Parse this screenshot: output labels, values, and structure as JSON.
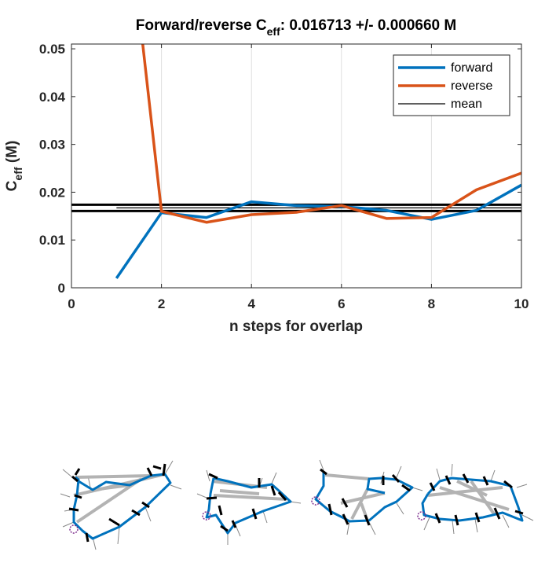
{
  "chart_data": {
    "type": "line",
    "title": {
      "pre": "Forward/reverse C",
      "sub": "eff",
      "post": ": 0.016713 +/- 0.000660 M"
    },
    "xlabel": "n steps for overlap",
    "ylabel": {
      "main": "C",
      "sub": "eff",
      "post": " (M)"
    },
    "xlim": [
      0,
      10
    ],
    "ylim": [
      0,
      0.051
    ],
    "xticks": [
      0,
      2,
      4,
      6,
      8,
      10
    ],
    "xtick_labels": [
      "0",
      "2",
      "4",
      "6",
      "8",
      "10"
    ],
    "yticks": [
      0,
      0.01,
      0.02,
      0.03,
      0.04,
      0.05
    ],
    "ytick_labels": [
      "0",
      "0.01",
      "0.02",
      "0.03",
      "0.04",
      "0.05"
    ],
    "grid": "x",
    "legend_position": "top-right",
    "series": [
      {
        "name": "forward",
        "color": "#0072BD",
        "x": [
          1,
          2,
          3,
          4,
          5,
          6,
          7,
          8,
          9,
          10
        ],
        "y": [
          0.002,
          0.0157,
          0.0147,
          0.018,
          0.0172,
          0.017,
          0.0162,
          0.0143,
          0.0162,
          0.0215
        ]
      },
      {
        "name": "reverse",
        "color": "#D95319",
        "x": [
          1,
          2,
          3,
          4,
          5,
          6,
          7,
          8,
          9,
          10
        ],
        "y": [
          0.1,
          0.016,
          0.0137,
          0.0153,
          0.0158,
          0.0172,
          0.0145,
          0.0147,
          0.0205,
          0.024
        ]
      }
    ],
    "mean": {
      "name": "mean",
      "color": "#000000",
      "value": 0.016713,
      "band": 0.00066
    }
  },
  "structures": {
    "backbone_color": "#0072BD",
    "pair_color": "#b3b3b3",
    "base_color": "#000000",
    "start_marker_color": "#7E2F8E"
  }
}
